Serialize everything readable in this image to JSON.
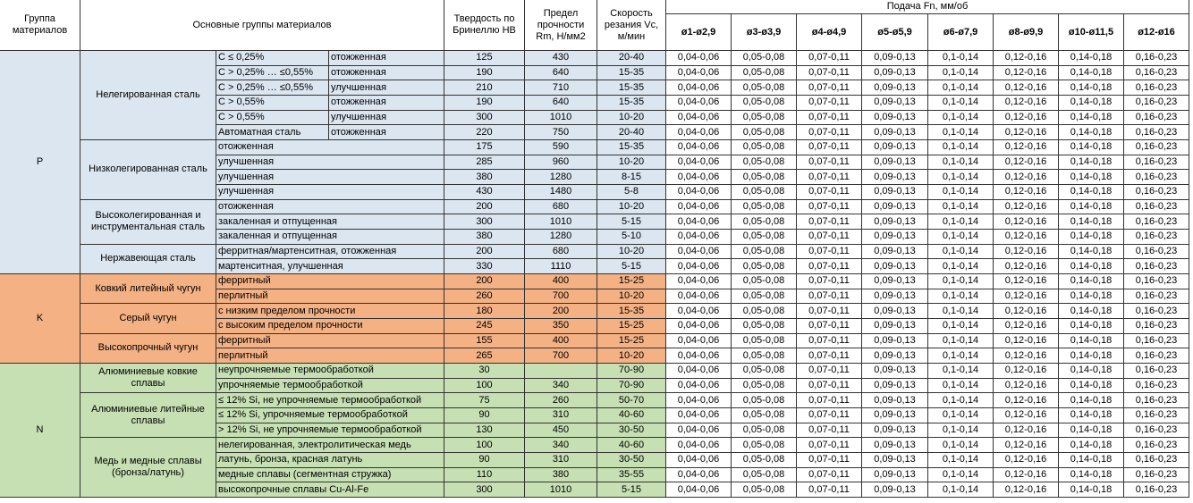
{
  "header": {
    "group": "Группа материалов",
    "main": "Основные группы материалов",
    "hardness": "Твердость по Бринеллю НВ",
    "strength": "Предел прочности Rm, Н/мм2",
    "speed": "Скорость резания Vc, м/мин",
    "feed": "Подача Fn, мм/об",
    "sizes": [
      "ø1-ø2,9",
      "ø3-ø3,9",
      "ø4-ø4,9",
      "ø5-ø5,9",
      "ø6-ø7,9",
      "ø8-ø9,9",
      "ø10-ø11,5",
      "ø12-ø16"
    ]
  },
  "groups": [
    {
      "code": "P",
      "color": "#dce6f1",
      "subgroups": [
        {
          "name": "Нелегированная сталь",
          "rows": [
            {
              "desc": [
                "C ≤ 0,25%",
                "отожженная"
              ],
              "hb": 125,
              "rm": 430,
              "vc": "20-40",
              "feed": [
                "0,04-0,06",
                "0,05-0,08",
                "0,07-0,11",
                "0,09-0,13",
                "0,1-0,14",
                "0,12-0,16",
                "0,14-0,18",
                "0,16-0,23"
              ]
            },
            {
              "desc": [
                "C > 0,25% … ≤0,55%",
                "отожженная"
              ],
              "hb": 190,
              "rm": 640,
              "vc": "15-35",
              "feed": [
                "0,04-0,06",
                "0,05-0,08",
                "0,07-0,11",
                "0,09-0,13",
                "0,1-0,14",
                "0,12-0,16",
                "0,14-0,18",
                "0,16-0,23"
              ]
            },
            {
              "desc": [
                "C > 0,25% … ≤0,55%",
                "улучшенная"
              ],
              "hb": 210,
              "rm": 710,
              "vc": "15-35",
              "feed": [
                "0,04-0,06",
                "0,05-0,08",
                "0,07-0,11",
                "0,09-0,13",
                "0,1-0,14",
                "0,12-0,16",
                "0,14-0,18",
                "0,16-0,23"
              ]
            },
            {
              "desc": [
                "C > 0,55%",
                "отожженная"
              ],
              "hb": 190,
              "rm": 640,
              "vc": "15-35",
              "feed": [
                "0,04-0,06",
                "0,05-0,08",
                "0,07-0,11",
                "0,09-0,13",
                "0,1-0,14",
                "0,12-0,16",
                "0,14-0,18",
                "0,16-0,23"
              ]
            },
            {
              "desc": [
                "C > 0,55%",
                "улучшенная"
              ],
              "hb": 300,
              "rm": 1010,
              "vc": "10-20",
              "feed": [
                "0,04-0,06",
                "0,05-0,08",
                "0,07-0,11",
                "0,09-0,13",
                "0,1-0,14",
                "0,12-0,16",
                "0,14-0,18",
                "0,16-0,23"
              ]
            },
            {
              "desc": [
                "Автоматная сталь",
                "отожженная"
              ],
              "hb": 220,
              "rm": 750,
              "vc": "20-40",
              "feed": [
                "0,04-0,06",
                "0,05-0,08",
                "0,07-0,11",
                "0,09-0,13",
                "0,1-0,14",
                "0,12-0,16",
                "0,14-0,18",
                "0,16-0,23"
              ]
            }
          ]
        },
        {
          "name": "Низколегированная сталь",
          "rows": [
            {
              "desc": [
                "отожженная"
              ],
              "hb": 175,
              "rm": 590,
              "vc": "15-35",
              "feed": [
                "0,04-0,06",
                "0,05-0,08",
                "0,07-0,11",
                "0,09-0,13",
                "0,1-0,14",
                "0,12-0,16",
                "0,14-0,18",
                "0,16-0,23"
              ]
            },
            {
              "desc": [
                "улучшенная"
              ],
              "hb": 285,
              "rm": 960,
              "vc": "10-20",
              "feed": [
                "0,04-0,06",
                "0,05-0,08",
                "0,07-0,11",
                "0,09-0,13",
                "0,1-0,14",
                "0,12-0,16",
                "0,14-0,18",
                "0,16-0,23"
              ]
            },
            {
              "desc": [
                "улучшенная"
              ],
              "hb": 380,
              "rm": 1280,
              "vc": "8-15",
              "feed": [
                "0,04-0,06",
                "0,05-0,08",
                "0,07-0,11",
                "0,09-0,13",
                "0,1-0,14",
                "0,12-0,16",
                "0,14-0,18",
                "0,16-0,23"
              ]
            },
            {
              "desc": [
                "улучшенная"
              ],
              "hb": 430,
              "rm": 1480,
              "vc": "5-8",
              "feed": [
                "0,04-0,06",
                "0,05-0,08",
                "0,07-0,11",
                "0,09-0,13",
                "0,1-0,14",
                "0,12-0,16",
                "0,14-0,18",
                "0,16-0,23"
              ]
            }
          ]
        },
        {
          "name": "Высоколегированная и инструментальная сталь",
          "rows": [
            {
              "desc": [
                "отожженная"
              ],
              "hb": 200,
              "rm": 680,
              "vc": "10-20",
              "feed": [
                "0,04-0,06",
                "0,05-0,08",
                "0,07-0,11",
                "0,09-0,13",
                "0,1-0,14",
                "0,12-0,16",
                "0,14-0,18",
                "0,16-0,23"
              ]
            },
            {
              "desc": [
                "закаленная и отпущенная"
              ],
              "hb": 300,
              "rm": 1010,
              "vc": "5-15",
              "feed": [
                "0,04-0,06",
                "0,05-0,08",
                "0,07-0,11",
                "0,09-0,13",
                "0,1-0,14",
                "0,12-0,16",
                "0,14-0,18",
                "0,16-0,23"
              ]
            },
            {
              "desc": [
                "закаленная и отпущенная"
              ],
              "hb": 380,
              "rm": 1280,
              "vc": "5-10",
              "feed": [
                "0,04-0,06",
                "0,05-0,08",
                "0,07-0,11",
                "0,09-0,13",
                "0,1-0,14",
                "0,12-0,16",
                "0,14-0,18",
                "0,16-0,23"
              ]
            }
          ]
        },
        {
          "name": "Нержавеющая сталь",
          "rows": [
            {
              "desc": [
                "ферритная/мартенситная, отожженная"
              ],
              "hb": 200,
              "rm": 680,
              "vc": "10-20",
              "feed": [
                "0,04-0,06",
                "0,05-0,08",
                "0,07-0,11",
                "0,09-0,13",
                "0,1-0,14",
                "0,12-0,16",
                "0,14-0,18",
                "0,16-0,23"
              ]
            },
            {
              "desc": [
                "мартенситная, улучшенная"
              ],
              "hb": 330,
              "rm": 1110,
              "vc": "5-15",
              "feed": [
                "0,04-0,06",
                "0,05-0,08",
                "0,07-0,11",
                "0,09-0,13",
                "0,1-0,14",
                "0,12-0,16",
                "0,14-0,18",
                "0,16-0,23"
              ]
            }
          ]
        }
      ]
    },
    {
      "code": "K",
      "color": "#f4b183",
      "subgroups": [
        {
          "name": "Ковкий литейный чугун",
          "rows": [
            {
              "desc": [
                "ферритный"
              ],
              "hb": 200,
              "rm": 400,
              "vc": "15-25",
              "feed": [
                "0,04-0,06",
                "0,05-0,08",
                "0,07-0,11",
                "0,09-0,13",
                "0,1-0,14",
                "0,12-0,16",
                "0,14-0,18",
                "0,16-0,23"
              ]
            },
            {
              "desc": [
                "перлитный"
              ],
              "hb": 260,
              "rm": 700,
              "vc": "10-20",
              "feed": [
                "0,04-0,06",
                "0,05-0,08",
                "0,07-0,11",
                "0,09-0,13",
                "0,1-0,14",
                "0,12-0,16",
                "0,14-0,18",
                "0,16-0,23"
              ]
            }
          ]
        },
        {
          "name": "Серый чугун",
          "rows": [
            {
              "desc": [
                "с низким пределом прочности"
              ],
              "hb": 180,
              "rm": 200,
              "vc": "15-35",
              "feed": [
                "0,04-0,06",
                "0,05-0,08",
                "0,07-0,11",
                "0,09-0,13",
                "0,1-0,14",
                "0,12-0,16",
                "0,14-0,18",
                "0,16-0,23"
              ]
            },
            {
              "desc": [
                "с высоким пределом прочности"
              ],
              "hb": 245,
              "rm": 350,
              "vc": "15-25",
              "feed": [
                "0,04-0,06",
                "0,05-0,08",
                "0,07-0,11",
                "0,09-0,13",
                "0,1-0,14",
                "0,12-0,16",
                "0,14-0,18",
                "0,16-0,23"
              ]
            }
          ]
        },
        {
          "name": "Высокопрочный чугун",
          "rows": [
            {
              "desc": [
                "ферритный"
              ],
              "hb": 155,
              "rm": 400,
              "vc": "15-25",
              "feed": [
                "0,04-0,06",
                "0,05-0,08",
                "0,07-0,11",
                "0,09-0,13",
                "0,1-0,14",
                "0,12-0,16",
                "0,14-0,18",
                "0,16-0,23"
              ]
            },
            {
              "desc": [
                "перлитный"
              ],
              "hb": 265,
              "rm": 700,
              "vc": "10-20",
              "feed": [
                "0,04-0,06",
                "0,05-0,08",
                "0,07-0,11",
                "0,09-0,13",
                "0,1-0,14",
                "0,12-0,16",
                "0,14-0,18",
                "0,16-0,23"
              ]
            }
          ]
        }
      ]
    },
    {
      "code": "N",
      "color": "#c6e0b4",
      "subgroups": [
        {
          "name": "Алюминиевые ковкие сплавы",
          "rows": [
            {
              "desc": [
                "неупрочняемые термообработкой"
              ],
              "hb": 30,
              "rm": null,
              "vc": "70-90",
              "feed": [
                "0,04-0,06",
                "0,05-0,08",
                "0,07-0,11",
                "0,09-0,13",
                "0,1-0,14",
                "0,12-0,16",
                "0,14-0,18",
                "0,16-0,23"
              ]
            },
            {
              "desc": [
                "упрочняемые термообработкой"
              ],
              "hb": 100,
              "rm": 340,
              "vc": "70-90",
              "feed": [
                "0,04-0,06",
                "0,05-0,08",
                "0,07-0,11",
                "0,09-0,13",
                "0,1-0,14",
                "0,12-0,16",
                "0,14-0,18",
                "0,16-0,23"
              ]
            }
          ]
        },
        {
          "name": "Алюминиевые литейные сплавы",
          "rows": [
            {
              "desc": [
                "≤ 12% Si, не упрочняемые термообработкой"
              ],
              "hb": 75,
              "rm": 260,
              "vc": "50-70",
              "feed": [
                "0,04-0,06",
                "0,05-0,08",
                "0,07-0,11",
                "0,09-0,13",
                "0,1-0,14",
                "0,12-0,16",
                "0,14-0,18",
                "0,16-0,23"
              ]
            },
            {
              "desc": [
                "≤ 12% Si, упрочняемые термообработкой"
              ],
              "hb": 90,
              "rm": 310,
              "vc": "40-60",
              "feed": [
                "0,04-0,06",
                "0,05-0,08",
                "0,07-0,11",
                "0,09-0,13",
                "0,1-0,14",
                "0,12-0,16",
                "0,14-0,18",
                "0,16-0,23"
              ]
            },
            {
              "desc": [
                "> 12% Si, не упрочняемые термообработкой"
              ],
              "hb": 130,
              "rm": 450,
              "vc": "30-50",
              "feed": [
                "0,04-0,06",
                "0,05-0,08",
                "0,07-0,11",
                "0,09-0,13",
                "0,1-0,14",
                "0,12-0,16",
                "0,14-0,18",
                "0,16-0,23"
              ]
            }
          ]
        },
        {
          "name": "Медь и медные сплавы (бронза/латунь)",
          "rows": [
            {
              "desc": [
                "нелегированная, электролитическая медь"
              ],
              "hb": 100,
              "rm": 340,
              "vc": "40-60",
              "feed": [
                "0,04-0,06",
                "0,05-0,08",
                "0,07-0,11",
                "0,09-0,13",
                "0,1-0,14",
                "0,12-0,16",
                "0,14-0,18",
                "0,16-0,23"
              ]
            },
            {
              "desc": [
                "латунь, бронза, красная латунь"
              ],
              "hb": 90,
              "rm": 310,
              "vc": "30-50",
              "feed": [
                "0,04-0,06",
                "0,05-0,08",
                "0,07-0,11",
                "0,09-0,13",
                "0,1-0,14",
                "0,12-0,16",
                "0,14-0,18",
                "0,16-0,23"
              ]
            },
            {
              "desc": [
                "медные сплавы (сегментная стружка)"
              ],
              "hb": 110,
              "rm": 380,
              "vc": "35-55",
              "feed": [
                "0,04-0,06",
                "0,05-0,08",
                "0,07-0,11",
                "0,09-0,13",
                "0,1-0,14",
                "0,12-0,16",
                "0,14-0,18",
                "0,16-0,23"
              ]
            },
            {
              "desc": [
                "высокопрочные сплавы Cu-Al-Fe"
              ],
              "hb": 300,
              "rm": 1010,
              "vc": "5-15",
              "feed": [
                "0,04-0,06",
                "0,05-0,08",
                "0,07-0,11",
                "0,09-0,13",
                "0,1-0,14",
                "0,12-0,16",
                "0,14-0,18",
                "0,16-0,23"
              ]
            }
          ]
        }
      ]
    }
  ]
}
